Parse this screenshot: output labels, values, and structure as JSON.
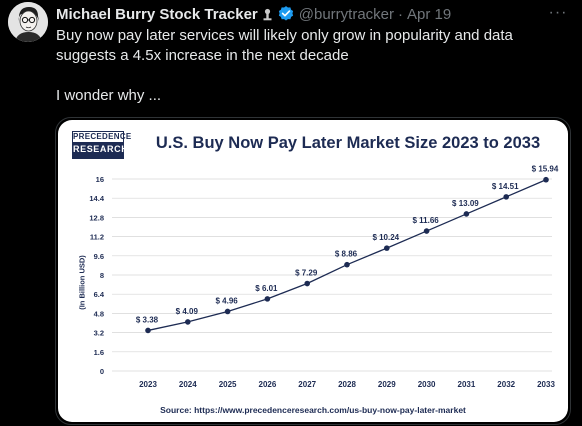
{
  "tweet": {
    "author_name": "Michael Burry Stock Tracker",
    "handle": "@burrytracker",
    "separator": "·",
    "date": "Apr 19",
    "more_label": "···",
    "text_line1": "Buy now pay later services will likely only grow in popularity and data suggests a 4.5x increase in the next decade",
    "text_line2": "I wonder why ..."
  },
  "colors": {
    "background": "#000000",
    "text": "#e7e9ea",
    "muted": "#71767b",
    "verified": "#1d9bf0",
    "chart_line": "#1d2b53"
  },
  "icons": {
    "author_badge": "person-icon",
    "verified": "verified-badge-icon",
    "more": "more-icon"
  },
  "logo": {
    "top": "PRECEDENCE",
    "bottom": "RESEARCH"
  },
  "chart_data": {
    "type": "line",
    "title": "U.S. Buy Now Pay Later Market Size 2023 to 2033",
    "ylabel": "(In Billion USD)",
    "xlabel": "",
    "categories": [
      "2023",
      "2024",
      "2025",
      "2026",
      "2027",
      "2028",
      "2029",
      "2030",
      "2031",
      "2032",
      "2033"
    ],
    "values": [
      3.38,
      4.09,
      4.96,
      6.01,
      7.29,
      8.86,
      10.24,
      11.66,
      13.09,
      14.51,
      15.94
    ],
    "data_labels": [
      "$ 3.38",
      "$ 4.09",
      "$ 4.96",
      "$ 6.01",
      "$ 7.29",
      "$ 8.86",
      "$ 10.24",
      "$ 11.66",
      "$ 13.09",
      "$ 14.51",
      "$ 15.94"
    ],
    "yticks": [
      "0",
      "1.6",
      "3.2",
      "4.8",
      "6.4",
      "8",
      "9.6",
      "11.2",
      "12.8",
      "14.4",
      "16"
    ],
    "ylim": [
      0,
      16
    ],
    "grid": "horizontal",
    "source": "Source: https://www.precedenceresearch.com/us-buy-now-pay-later-market"
  }
}
